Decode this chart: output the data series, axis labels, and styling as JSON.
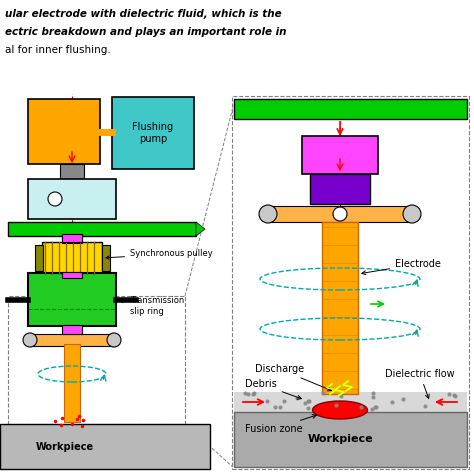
{
  "bg_color": "#ffffff",
  "labels": {
    "flushing_pump": "Flushing\npump",
    "synchronous_pulley": "Synchronous pulley",
    "transmission_slip_ring": "Transmission\nslip ring",
    "workpiece_left": "Workpiece",
    "electrode": "Electrode",
    "discharge": "Discharge",
    "debris": "Debris",
    "dielectric_flow": "Dielectric flow",
    "fusion_zone": "Fusion zone",
    "workpiece_right": "Workpiece"
  },
  "colors": {
    "orange": "#FFA500",
    "light_orange": "#FFB347",
    "green": "#32CD32",
    "bright_green": "#00CC00",
    "cyan_box": "#40C8C8",
    "light_cyan": "#C8F0F0",
    "magenta": "#FF44FF",
    "purple": "#7700CC",
    "yellow": "#FFD700",
    "gray": "#A0A0A0",
    "light_gray": "#C8C8C8",
    "dark_gray": "#888888",
    "red": "#FF0000",
    "teal": "#00AAAA",
    "workpiece_gray": "#B8B8B8",
    "workpiece_gray2": "#AAAAAA"
  },
  "top_text": [
    "ular electrode with dielectric fluid, which is the",
    "ectric breakdown and plays an important role in",
    "al for inner flushing."
  ]
}
